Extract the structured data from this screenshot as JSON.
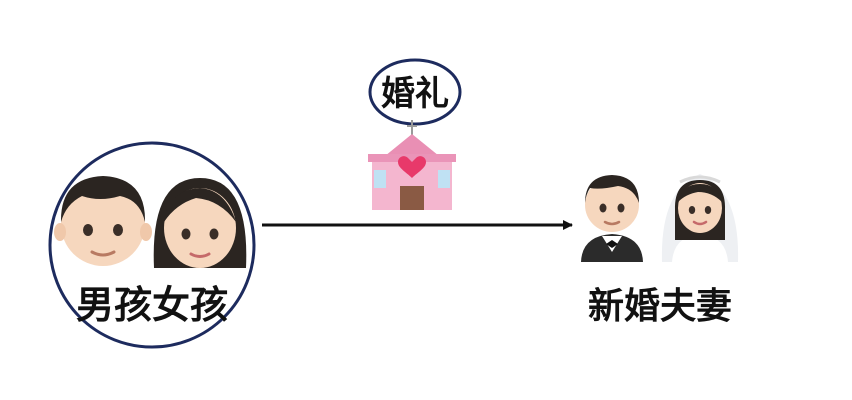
{
  "diagram": {
    "start": {
      "label": "男孩女孩",
      "figures": [
        "boy-face-icon",
        "girl-face-icon"
      ],
      "circled": true
    },
    "event": {
      "label": "婚礼",
      "icon": "wedding-chapel-icon"
    },
    "end": {
      "label": "新婚夫妻",
      "figures": [
        "groom-icon",
        "bride-icon"
      ]
    },
    "connector": "arrow-right",
    "colors": {
      "circle_stroke": "#1d2b5e",
      "arrow": "#111111",
      "label_text": "#111111",
      "chapel_pink": "#f4b6cf",
      "heart": "#e8396a"
    }
  }
}
